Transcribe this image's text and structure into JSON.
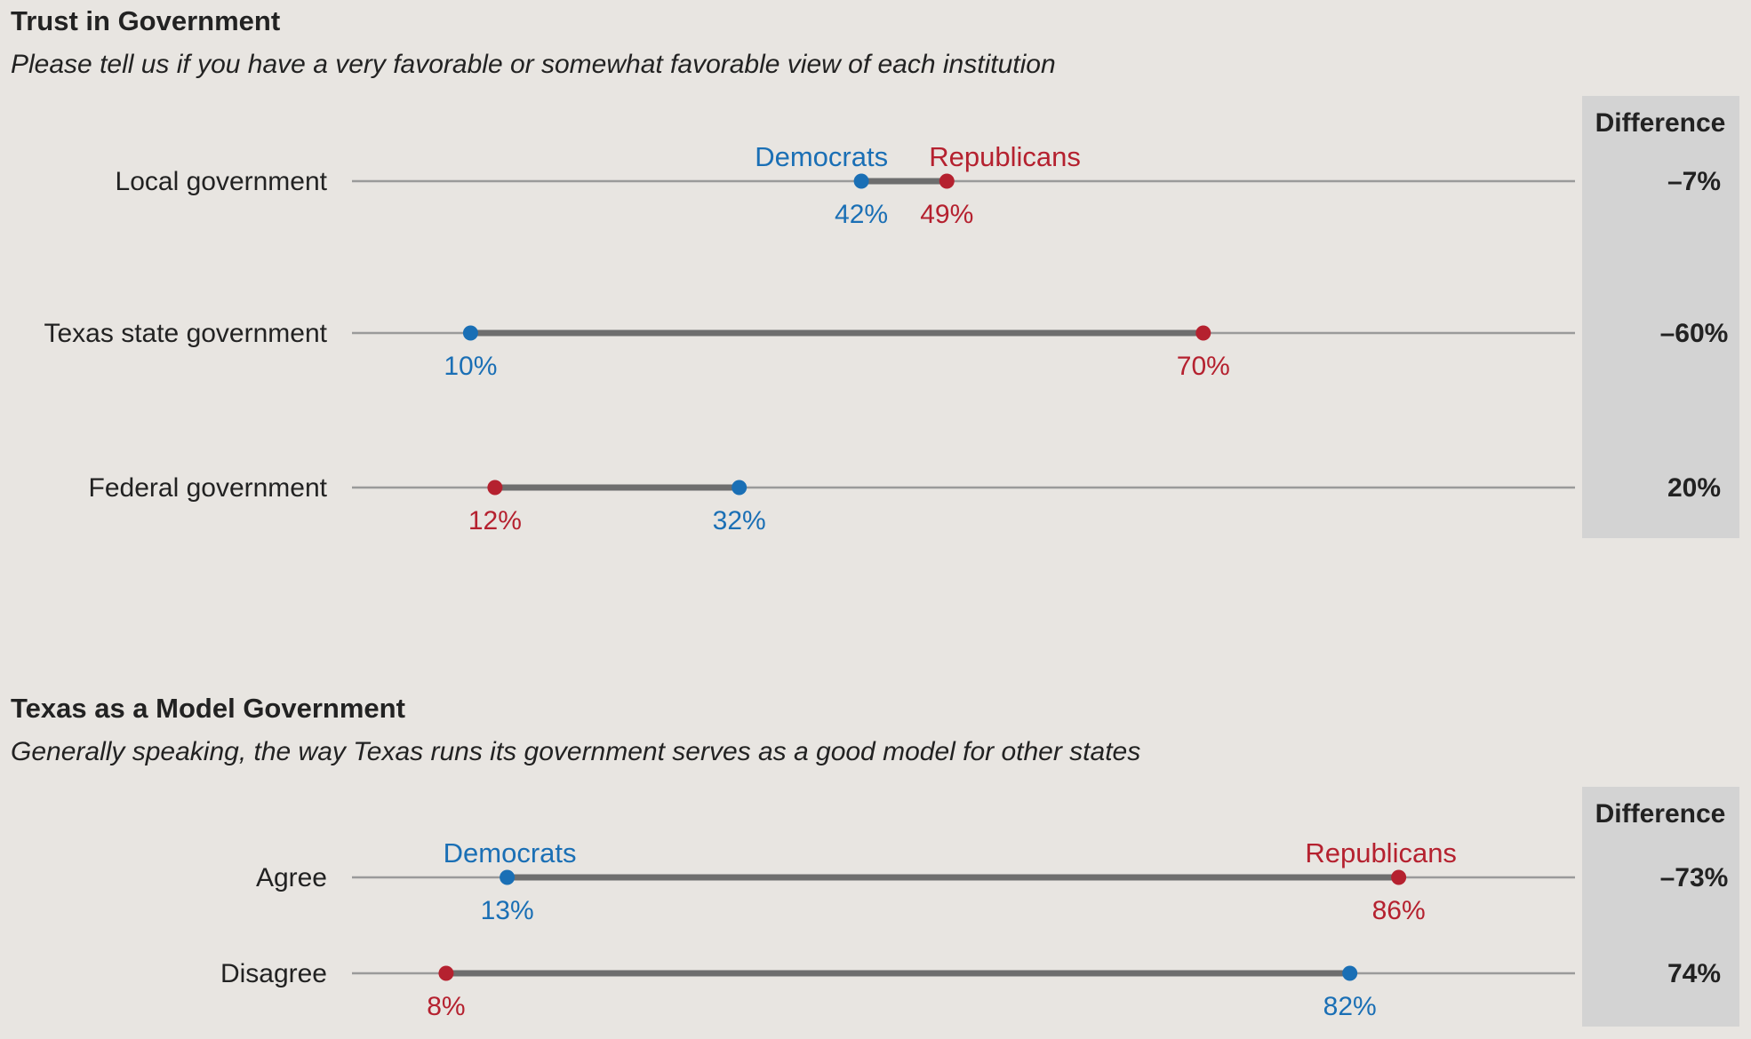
{
  "colors": {
    "democrats": "#1a6fb5",
    "republicans": "#b5212f",
    "connector": "#6e6e6e",
    "baseline": "#9a9a9a"
  },
  "chart_data": [
    {
      "type": "dumbbell",
      "title": "Trust in Government",
      "subtitle": "Please tell us if you have a very favorable or somewhat favorable view of each institution",
      "difference_header": "Difference",
      "series_labels": {
        "democrats": "Democrats",
        "republicans": "Republicans"
      },
      "xlim": [
        0,
        100
      ],
      "rows": [
        {
          "label": "Local government",
          "democrats": 42,
          "republicans": 49,
          "democrats_label": "42%",
          "republicans_label": "49%",
          "difference": "–7%",
          "show_series_labels": true
        },
        {
          "label": "Texas state government",
          "democrats": 10,
          "republicans": 70,
          "democrats_label": "10%",
          "republicans_label": "70%",
          "difference": "–60%",
          "show_series_labels": false
        },
        {
          "label": "Federal government",
          "democrats": 32,
          "republicans": 12,
          "democrats_label": "32%",
          "republicans_label": "12%",
          "difference": "20%",
          "show_series_labels": false
        }
      ]
    },
    {
      "type": "dumbbell",
      "title": "Texas as a Model Government",
      "subtitle": "Generally speaking, the way Texas runs its government serves as a good model for other states",
      "difference_header": "Difference",
      "series_labels": {
        "democrats": "Democrats",
        "republicans": "Republicans"
      },
      "xlim": [
        0,
        100
      ],
      "rows": [
        {
          "label": "Agree",
          "democrats": 13,
          "republicans": 86,
          "democrats_label": "13%",
          "republicans_label": "86%",
          "difference": "–73%",
          "show_series_labels": true
        },
        {
          "label": "Disagree",
          "democrats": 82,
          "republicans": 8,
          "democrats_label": "82%",
          "republicans_label": "8%",
          "difference": "74%",
          "show_series_labels": false
        }
      ]
    }
  ]
}
